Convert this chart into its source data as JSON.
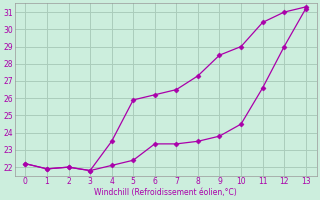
{
  "line_upper_x": [
    0,
    1,
    2,
    3,
    4,
    5,
    6,
    7,
    8,
    9,
    10,
    11,
    12,
    13
  ],
  "line_upper_y": [
    22.2,
    21.9,
    22.0,
    21.8,
    23.5,
    25.9,
    26.2,
    26.5,
    27.3,
    28.5,
    29.0,
    30.4,
    31.0,
    31.3
  ],
  "line_lower_x": [
    0,
    1,
    2,
    3,
    4,
    5,
    6,
    7,
    8,
    9,
    10,
    11,
    12,
    13
  ],
  "line_lower_y": [
    22.2,
    21.9,
    22.0,
    21.8,
    22.1,
    22.4,
    23.35,
    23.35,
    23.5,
    23.8,
    24.5,
    26.6,
    29.0,
    31.2
  ],
  "line_color": "#AA00AA",
  "bg_color": "#CCEEDD",
  "grid_color": "#AACCBB",
  "xlabel": "Windchill (Refroidissement éolien,°C)",
  "ylim": [
    21.5,
    31.5
  ],
  "xlim": [
    -0.5,
    13.5
  ],
  "yticks": [
    22,
    23,
    24,
    25,
    26,
    27,
    28,
    29,
    30,
    31
  ],
  "xticks": [
    0,
    1,
    2,
    3,
    4,
    5,
    6,
    7,
    8,
    9,
    10,
    11,
    12,
    13
  ],
  "tick_fontsize": 5.5,
  "xlabel_fontsize": 5.5
}
